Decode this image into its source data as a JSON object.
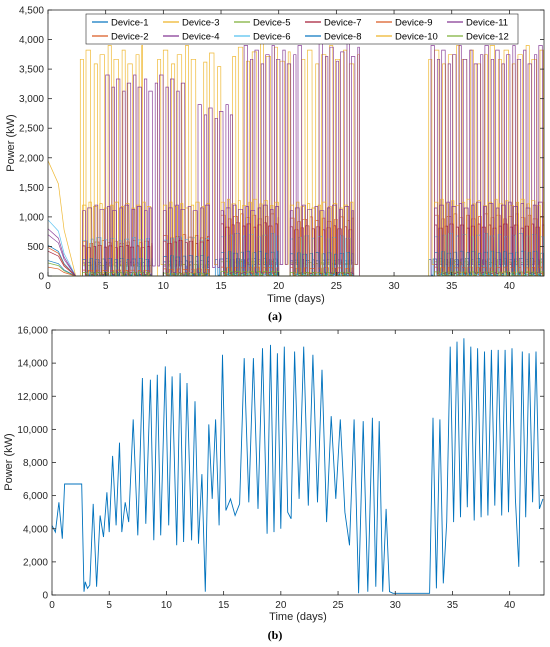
{
  "chart_data": [
    {
      "panel_label": "(a)",
      "type": "line",
      "xlabel": "Time (days)",
      "ylabel": "Power (kW)",
      "xlim": [
        0,
        43
      ],
      "ylim": [
        0,
        4500
      ],
      "xticks": [
        0,
        5,
        10,
        15,
        20,
        25,
        30,
        35,
        40
      ],
      "yticks": [
        0,
        500,
        1000,
        1500,
        2000,
        2500,
        3000,
        3500,
        4000,
        4500
      ],
      "ytick_labels": [
        "0",
        "500",
        "1,000",
        "1,500",
        "2,000",
        "2,500",
        "3,000",
        "3,500",
        "4,000",
        "4,500"
      ],
      "grid": false,
      "legend_position": "top",
      "legend_columns": 6,
      "series": [
        {
          "name": "Device-1",
          "color": "#0072BD",
          "segments": [
            [
              0,
              0,
              520
            ],
            [
              3,
              9,
              240
            ],
            [
              10,
              14,
              260
            ],
            [
              14.5,
              20,
              300
            ],
            [
              21,
              26.5,
              280
            ],
            [
              33,
              43,
              300
            ]
          ]
        },
        {
          "name": "Device-2",
          "color": "#D95319",
          "segments": [
            [
              0,
              0,
              480
            ],
            [
              3,
              9,
              600
            ],
            [
              10,
              14,
              700
            ],
            [
              15,
              20,
              1050
            ],
            [
              21,
              26.5,
              1000
            ],
            [
              33.5,
              43,
              1050
            ]
          ]
        },
        {
          "name": "Device-3",
          "color": "#EDB120",
          "segments": [
            [
              2.8,
              8.2,
              3900
            ],
            [
              9.5,
              13,
              3900
            ],
            [
              13.5,
              15,
              3850
            ],
            [
              16,
              21,
              3950
            ],
            [
              22,
              27,
              3900
            ],
            [
              33,
              43,
              3900
            ]
          ]
        },
        {
          "name": "Device-4",
          "color": "#7E2F8E",
          "segments": [
            [
              0,
              0,
              800
            ],
            [
              5,
              12,
              3400
            ],
            [
              13,
              16,
              2900
            ],
            [
              17,
              22,
              3900
            ],
            [
              23.5,
              27,
              3950
            ],
            [
              33.2,
              43,
              3900
            ]
          ]
        },
        {
          "name": "Device-5",
          "color": "#77AC30",
          "segments": [
            [
              0,
              0,
              220
            ],
            [
              3,
              9,
              180
            ],
            [
              10,
              14,
              200
            ],
            [
              15,
              20,
              250
            ],
            [
              21,
              26.5,
              230
            ],
            [
              33.5,
              43,
              250
            ]
          ]
        },
        {
          "name": "Device-6",
          "color": "#4DBEEE",
          "segments": [
            [
              0,
              0,
              950
            ],
            [
              3,
              9,
              650
            ],
            [
              10,
              14,
              660
            ],
            [
              15,
              20,
              720
            ],
            [
              21,
              26.5,
              680
            ],
            [
              33.5,
              43,
              720
            ]
          ]
        },
        {
          "name": "Device-7",
          "color": "#A2142F",
          "segments": [
            [
              0,
              0,
              420
            ],
            [
              3,
              9,
              520
            ],
            [
              10,
              14,
              600
            ],
            [
              15,
              20,
              900
            ],
            [
              21,
              26.5,
              850
            ],
            [
              33.5,
              43,
              880
            ]
          ]
        },
        {
          "name": "Device-8",
          "color": "#0072BD",
          "segments": [
            [
              0,
              0,
              260
            ],
            [
              3,
              9,
              300
            ],
            [
              10,
              14,
              350
            ],
            [
              15,
              20,
              420
            ],
            [
              21,
              26.5,
              400
            ],
            [
              33.5,
              43,
              420
            ]
          ]
        },
        {
          "name": "Device-9",
          "color": "#D95319",
          "segments": [
            [
              0,
              0,
              150
            ],
            [
              3,
              9,
              100
            ],
            [
              10,
              14,
              120
            ],
            [
              15,
              20,
              150
            ],
            [
              21,
              26.5,
              140
            ],
            [
              33.5,
              43,
              150
            ]
          ]
        },
        {
          "name": "Device-10",
          "color": "#EDB120",
          "segments": [
            [
              0,
              0,
              1950
            ],
            [
              3,
              9,
              1250
            ],
            [
              10,
              14,
              1250
            ],
            [
              15,
              20,
              1300
            ],
            [
              21,
              26.5,
              1250
            ],
            [
              33.5,
              43,
              1300
            ]
          ]
        },
        {
          "name": "Device-11",
          "color": "#7E2F8E",
          "segments": [
            [
              0,
              0,
              700
            ],
            [
              3,
              9,
              1200
            ],
            [
              10,
              14,
              1200
            ],
            [
              15,
              20,
              1200
            ],
            [
              21,
              26.5,
              1200
            ],
            [
              33.5,
              43,
              1250
            ]
          ]
        },
        {
          "name": "Device-12",
          "color": "#77AC30",
          "segments": [
            [
              0,
              0,
              0
            ],
            [
              3,
              9,
              60
            ],
            [
              10,
              14,
              50
            ],
            [
              15,
              20,
              80
            ],
            [
              21,
              26.5,
              60
            ],
            [
              33.5,
              43,
              70
            ]
          ]
        }
      ]
    },
    {
      "panel_label": "(b)",
      "type": "line",
      "xlabel": "Time (days)",
      "ylabel": "Power (kW)",
      "xlim": [
        0,
        43
      ],
      "ylim": [
        0,
        16000
      ],
      "xticks": [
        0,
        5,
        10,
        15,
        20,
        25,
        30,
        35,
        40
      ],
      "yticks": [
        0,
        2000,
        4000,
        6000,
        8000,
        10000,
        12000,
        14000,
        16000
      ],
      "ytick_labels": [
        "0",
        "2,000",
        "4,000",
        "6,000",
        "8,000",
        "10,000",
        "12,000",
        "14,000",
        "16,000"
      ],
      "grid": false,
      "color": "#0072BD",
      "x": [
        0,
        0.3,
        0.6,
        0.9,
        1.1,
        1.3,
        2.6,
        2.8,
        2.9,
        3.1,
        3.3,
        3.6,
        3.9,
        4.2,
        4.5,
        4.8,
        5.0,
        5.3,
        5.6,
        5.9,
        6.1,
        6.4,
        6.7,
        7.1,
        7.5,
        7.9,
        8.2,
        8.6,
        8.9,
        9.2,
        9.5,
        9.9,
        10.2,
        10.5,
        10.9,
        11.2,
        11.5,
        11.8,
        12.2,
        12.5,
        12.8,
        13.1,
        13.4,
        13.7,
        14.0,
        14.3,
        14.6,
        14.9,
        15.2,
        15.6,
        16.0,
        16.4,
        16.8,
        17.2,
        17.6,
        18.0,
        18.4,
        18.8,
        19.1,
        19.4,
        19.7,
        20.0,
        20.3,
        20.6,
        20.9,
        21.2,
        21.6,
        22.0,
        22.4,
        22.8,
        23.2,
        23.6,
        24.0,
        24.4,
        24.8,
        25.2,
        25.6,
        26.0,
        26.4,
        26.8,
        27.2,
        27.6,
        28.0,
        28.3,
        28.6,
        28.9,
        29.2,
        29.5,
        29.8,
        30.1,
        31,
        32,
        33,
        33.3,
        33.6,
        33.9,
        34.2,
        34.5,
        34.8,
        35.1,
        35.4,
        35.7,
        36.0,
        36.3,
        36.6,
        36.9,
        37.2,
        37.5,
        37.8,
        38.1,
        38.4,
        38.7,
        39.0,
        39.3,
        39.6,
        39.9,
        40.2,
        40.5,
        40.8,
        41.1,
        41.4,
        41.7,
        42.0,
        42.3,
        42.6,
        42.9
      ],
      "y": [
        4200,
        3800,
        5600,
        3400,
        6700,
        6700,
        6700,
        200,
        800,
        400,
        600,
        5500,
        500,
        4800,
        3500,
        6200,
        3800,
        8400,
        4200,
        9200,
        3800,
        5600,
        4400,
        10600,
        3600,
        13100,
        4300,
        13000,
        3300,
        13300,
        3600,
        13800,
        4200,
        13200,
        3000,
        13400,
        3200,
        12800,
        3300,
        11700,
        3100,
        7300,
        200,
        10300,
        5800,
        10600,
        4200,
        14500,
        5100,
        5800,
        4800,
        5500,
        14300,
        5600,
        14300,
        5200,
        14900,
        3700,
        15100,
        3800,
        14600,
        4000,
        15000,
        5000,
        4600,
        14700,
        5800,
        15000,
        5400,
        14500,
        5600,
        13600,
        4400,
        10800,
        5800,
        10600,
        5000,
        3000,
        10600,
        100,
        10500,
        200,
        10700,
        500,
        10500,
        200,
        5200,
        200,
        100,
        100,
        100,
        100,
        100,
        10700,
        400,
        10600,
        700,
        4400,
        15000,
        4400,
        15300,
        4700,
        15500,
        5300,
        15000,
        4500,
        14900,
        4700,
        14700,
        4800,
        14800,
        5400,
        14800,
        4800,
        14800,
        5000,
        14900,
        5800,
        1700,
        14700,
        4700,
        14600,
        5600,
        14700,
        5200,
        5800
      ]
    }
  ]
}
